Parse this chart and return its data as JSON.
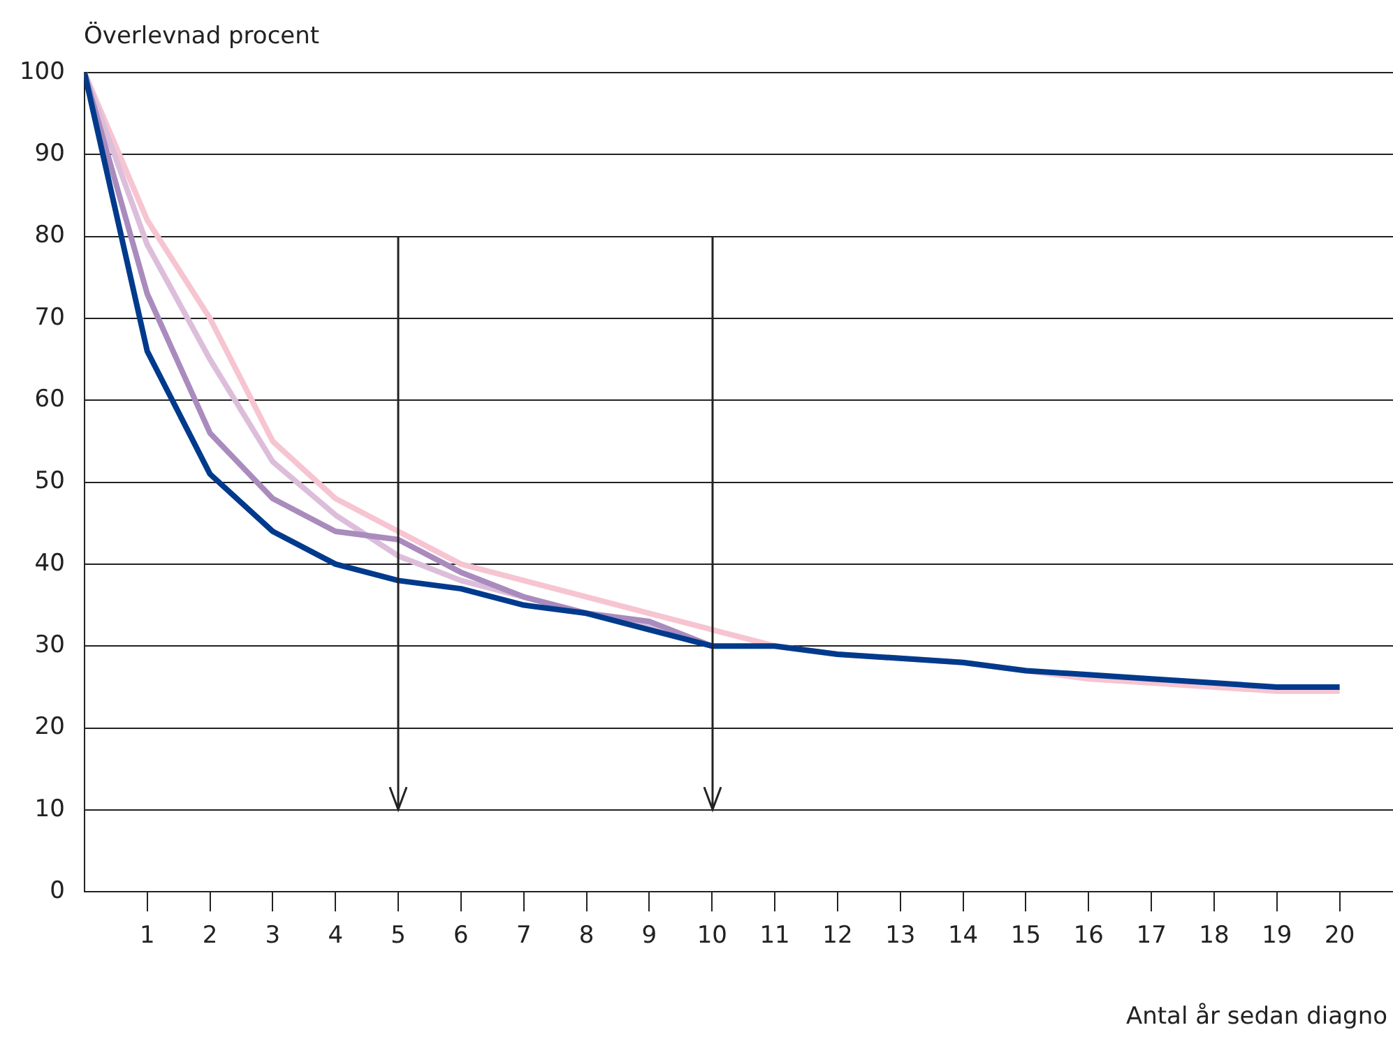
{
  "chart_data": {
    "type": "line",
    "ylabel": "Överlevnad procent",
    "xlabel": "Antal år sedan diagno",
    "x": [
      0,
      1,
      2,
      3,
      4,
      5,
      6,
      7,
      8,
      9,
      10,
      11,
      12,
      13,
      14,
      15,
      16,
      17,
      18,
      19,
      20
    ],
    "series": [
      {
        "color": "#f6c5d1",
        "values": [
          100,
          82,
          70,
          55,
          48,
          44,
          40,
          38,
          36,
          34,
          32,
          30,
          29,
          28.5,
          28,
          27,
          26,
          25.5,
          25,
          24.5,
          24.5
        ]
      },
      {
        "color": "#dcbedb",
        "values": [
          100,
          79,
          65,
          52.5,
          46,
          41,
          38,
          36,
          34,
          32.5,
          30,
          null,
          null,
          null,
          null,
          null,
          null,
          null,
          null,
          null,
          null
        ]
      },
      {
        "color": "#a98bbd",
        "values": [
          100,
          73,
          56,
          48,
          44,
          43,
          39,
          36,
          34,
          33,
          30,
          null,
          null,
          null,
          null,
          null,
          null,
          null,
          null,
          null,
          null
        ]
      },
      {
        "color": "#003a8c",
        "values": [
          100,
          66,
          51,
          44,
          40,
          38,
          37,
          35,
          34,
          32,
          30,
          30,
          29,
          28.5,
          28,
          27,
          26.5,
          26,
          25.5,
          25,
          25
        ]
      }
    ],
    "xlim": [
      0,
      20.85
    ],
    "xticks": [
      1,
      2,
      3,
      4,
      5,
      6,
      7,
      8,
      9,
      10,
      11,
      12,
      13,
      14,
      15,
      16,
      17,
      18,
      19,
      20
    ],
    "ylim": [
      0,
      100
    ],
    "yticks": [
      0,
      10,
      20,
      30,
      40,
      50,
      60,
      70,
      80,
      90,
      100
    ],
    "grid": "y",
    "legend": false,
    "marker": "none",
    "line_style": "solid",
    "ref_lines": [
      {
        "axis": "x",
        "value": 5
      },
      {
        "axis": "x",
        "value": 10
      }
    ]
  }
}
